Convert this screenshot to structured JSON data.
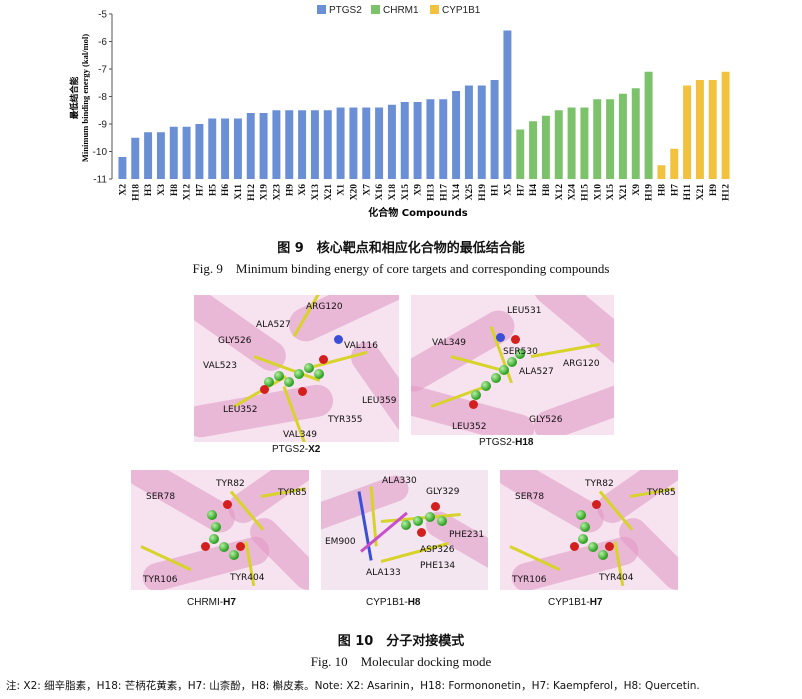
{
  "chart_data": {
    "type": "bar",
    "ylabel": "最低结合能 Minimum binding energy (kal/mol)",
    "xlabel": "化合物 Compounds",
    "ylim": [
      -11,
      -5
    ],
    "yticks": [
      "-5",
      "-6",
      "-7",
      "-8",
      "-9",
      "-10",
      "-11"
    ],
    "legend_position": "top",
    "series": [
      {
        "name": "PTGS2",
        "color": "#6b8fd4",
        "categories": [
          "X2",
          "H18",
          "H3",
          "X3",
          "H8",
          "X12",
          "H7",
          "H5",
          "H6",
          "X11",
          "H12",
          "X19",
          "X23",
          "H9",
          "X6",
          "X13",
          "X21",
          "X1",
          "X20",
          "X7",
          "X16",
          "X18",
          "X15",
          "X9",
          "H13",
          "H17",
          "X14",
          "X25",
          "H19",
          "H1",
          "X5"
        ],
        "values": [
          -10.2,
          -9.5,
          -9.3,
          -9.3,
          -9.1,
          -9.1,
          -9.0,
          -8.8,
          -8.8,
          -8.8,
          -8.6,
          -8.6,
          -8.5,
          -8.5,
          -8.5,
          -8.5,
          -8.5,
          -8.4,
          -8.4,
          -8.4,
          -8.4,
          -8.3,
          -8.2,
          -8.2,
          -8.1,
          -8.1,
          -7.8,
          -7.6,
          -7.6,
          -7.4,
          -5.6
        ]
      },
      {
        "name": "CHRM1",
        "color": "#7cc26b",
        "categories": [
          "H7",
          "H4",
          "H8",
          "X12",
          "X24",
          "H15",
          "X10",
          "X15",
          "X21",
          "X9",
          "H19"
        ],
        "values": [
          -9.2,
          -8.9,
          -8.7,
          -8.5,
          -8.4,
          -8.4,
          -8.1,
          -8.1,
          -7.9,
          -7.7,
          -7.1
        ]
      },
      {
        "name": "CYP1B1",
        "color": "#f2c13e",
        "categories": [
          "H8",
          "H7",
          "H11",
          "X21",
          "H9",
          "H12"
        ],
        "values": [
          -10.5,
          -9.9,
          -7.6,
          -7.4,
          -7.4,
          -7.1
        ]
      }
    ]
  },
  "captions": {
    "fig9_cn": "图 9　核心靶点和相应化合物的最低结合能",
    "fig9_en": "Fig. 9　Minimum binding energy of core targets and corresponding compounds",
    "fig10_cn": "图 10　分子对接模式",
    "fig10_en": "Fig. 10　Molecular docking mode"
  },
  "panels": [
    {
      "label_prefix": "PTGS2-",
      "label_bold": "X2",
      "residues": [
        "ARG120",
        "ALA527",
        "GLY526",
        "VAL116",
        "VAL523",
        "LEU359",
        "LEU352",
        "TYR355",
        "VAL349"
      ]
    },
    {
      "label_prefix": "PTGS2-",
      "label_bold": "H18",
      "residues": [
        "LEU531",
        "VAL349",
        "SER530",
        "ALA527",
        "ARG120",
        "LEU352",
        "GLY526"
      ]
    },
    {
      "label_prefix": "CHRMI-",
      "label_bold": "H7",
      "residues": [
        "TYR82",
        "SER78",
        "TYR85",
        "TYR106",
        "TYR404"
      ]
    },
    {
      "label_prefix": "CYP1B1-",
      "label_bold": "H8",
      "residues": [
        "ALA330",
        "GLY329",
        "EM900",
        "PHE231",
        "ASP326",
        "PHE134",
        "ALA133"
      ]
    },
    {
      "label_prefix": "CYP1B1-",
      "label_bold": "H7",
      "residues": [
        "TYR82",
        "SER78",
        "TYR85",
        "TYR106",
        "TYR404"
      ]
    }
  ],
  "note": "注: X2: 细辛脂素，H18: 芒柄花黄素，H7: 山柰酚，H8: 槲皮素。Note: X2: Asarinin，H18: Formononetin，H7: Kaempferol，H8: Quercetin."
}
